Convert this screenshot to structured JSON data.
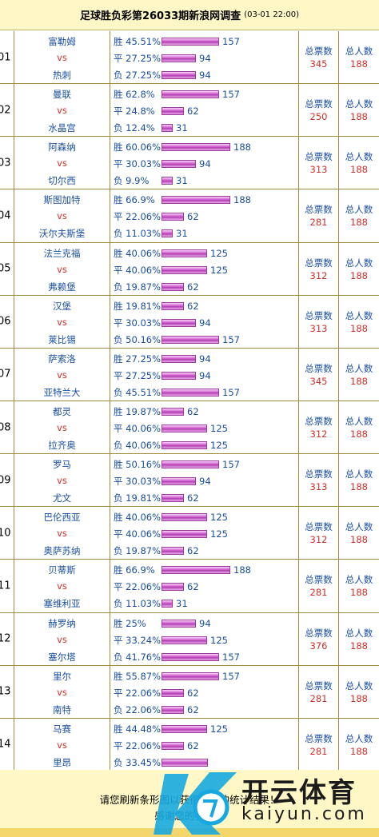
{
  "header": {
    "title": "足球胜负彩第26033期新浪网调查",
    "date": "(03-01 22:00)"
  },
  "labels": {
    "vs": "vs",
    "win": "胜",
    "draw": "平",
    "lose": "负",
    "total_votes": "总票数",
    "total_people": "总人数"
  },
  "matches": [
    {
      "no": "01",
      "home": "富勒姆",
      "away": "热刺",
      "win_pct": "45.51%",
      "win_cnt": "157",
      "draw_pct": "27.25%",
      "draw_cnt": "94",
      "lose_pct": "27.25%",
      "lose_cnt": "94",
      "votes": "345",
      "people": "188"
    },
    {
      "no": "02",
      "home": "曼联",
      "away": "水晶宫",
      "win_pct": "62.8%",
      "win_cnt": "157",
      "draw_pct": "24.8%",
      "draw_cnt": "62",
      "lose_pct": "12.4%",
      "lose_cnt": "31",
      "votes": "250",
      "people": "188"
    },
    {
      "no": "03",
      "home": "阿森纳",
      "away": "切尔西",
      "win_pct": "60.06%",
      "win_cnt": "188",
      "draw_pct": "30.03%",
      "draw_cnt": "94",
      "lose_pct": "9.9%",
      "lose_cnt": "31",
      "votes": "313",
      "people": "188"
    },
    {
      "no": "04",
      "home": "斯图加特",
      "away": "沃尔夫斯堡",
      "win_pct": "66.9%",
      "win_cnt": "188",
      "draw_pct": "22.06%",
      "draw_cnt": "62",
      "lose_pct": "11.03%",
      "lose_cnt": "31",
      "votes": "281",
      "people": "188"
    },
    {
      "no": "05",
      "home": "法兰克福",
      "away": "弗赖堡",
      "win_pct": "40.06%",
      "win_cnt": "125",
      "draw_pct": "40.06%",
      "draw_cnt": "125",
      "lose_pct": "19.87%",
      "lose_cnt": "62",
      "votes": "312",
      "people": "188"
    },
    {
      "no": "06",
      "home": "汉堡",
      "away": "莱比锡",
      "win_pct": "19.81%",
      "win_cnt": "62",
      "draw_pct": "30.03%",
      "draw_cnt": "94",
      "lose_pct": "50.16%",
      "lose_cnt": "157",
      "votes": "313",
      "people": "188"
    },
    {
      "no": "07",
      "home": "萨索洛",
      "away": "亚特兰大",
      "win_pct": "27.25%",
      "win_cnt": "94",
      "draw_pct": "27.25%",
      "draw_cnt": "94",
      "lose_pct": "45.51%",
      "lose_cnt": "157",
      "votes": "345",
      "people": "188"
    },
    {
      "no": "08",
      "home": "都灵",
      "away": "拉齐奥",
      "win_pct": "19.87%",
      "win_cnt": "62",
      "draw_pct": "40.06%",
      "draw_cnt": "125",
      "lose_pct": "40.06%",
      "lose_cnt": "125",
      "votes": "312",
      "people": "188"
    },
    {
      "no": "09",
      "home": "罗马",
      "away": "尤文",
      "win_pct": "50.16%",
      "win_cnt": "157",
      "draw_pct": "30.03%",
      "draw_cnt": "94",
      "lose_pct": "19.81%",
      "lose_cnt": "62",
      "votes": "313",
      "people": "188"
    },
    {
      "no": "10",
      "home": "巴伦西亚",
      "away": "奥萨苏纳",
      "win_pct": "40.06%",
      "win_cnt": "125",
      "draw_pct": "40.06%",
      "draw_cnt": "125",
      "lose_pct": "19.87%",
      "lose_cnt": "62",
      "votes": "312",
      "people": "188"
    },
    {
      "no": "11",
      "home": "贝蒂斯",
      "away": "塞维利亚",
      "win_pct": "66.9%",
      "win_cnt": "188",
      "draw_pct": "22.06%",
      "draw_cnt": "62",
      "lose_pct": "11.03%",
      "lose_cnt": "31",
      "votes": "281",
      "people": "188"
    },
    {
      "no": "12",
      "home": "赫罗纳",
      "away": "塞尔塔",
      "win_pct": "25%",
      "win_cnt": "94",
      "draw_pct": "33.24%",
      "draw_cnt": "125",
      "lose_pct": "41.76%",
      "lose_cnt": "157",
      "votes": "376",
      "people": "188"
    },
    {
      "no": "13",
      "home": "里尔",
      "away": "南特",
      "win_pct": "55.87%",
      "win_cnt": "157",
      "draw_pct": "22.06%",
      "draw_cnt": "62",
      "lose_pct": "22.06%",
      "lose_cnt": "62",
      "votes": "281",
      "people": "188"
    },
    {
      "no": "14",
      "home": "马赛",
      "away": "里昂",
      "win_pct": "44.48%",
      "win_cnt": "125",
      "draw_pct": "22.06%",
      "draw_cnt": "62",
      "lose_pct": "33.45%",
      "lose_cnt": "",
      "votes": "281",
      "people": "188"
    }
  ],
  "footer": {
    "notice": "请您刷新条形图以获得最新的统计结果！",
    "thanks": "感谢您的参与！"
  },
  "watermark": {
    "cn": "开云体育",
    "en": "kaiyun.com"
  },
  "colors": {
    "header_bg": "#fff7c6",
    "bar": "#c04ec0",
    "border": "#a08a3c",
    "link_blue": "#1a4fa0",
    "accent_red": "#d0302a"
  }
}
